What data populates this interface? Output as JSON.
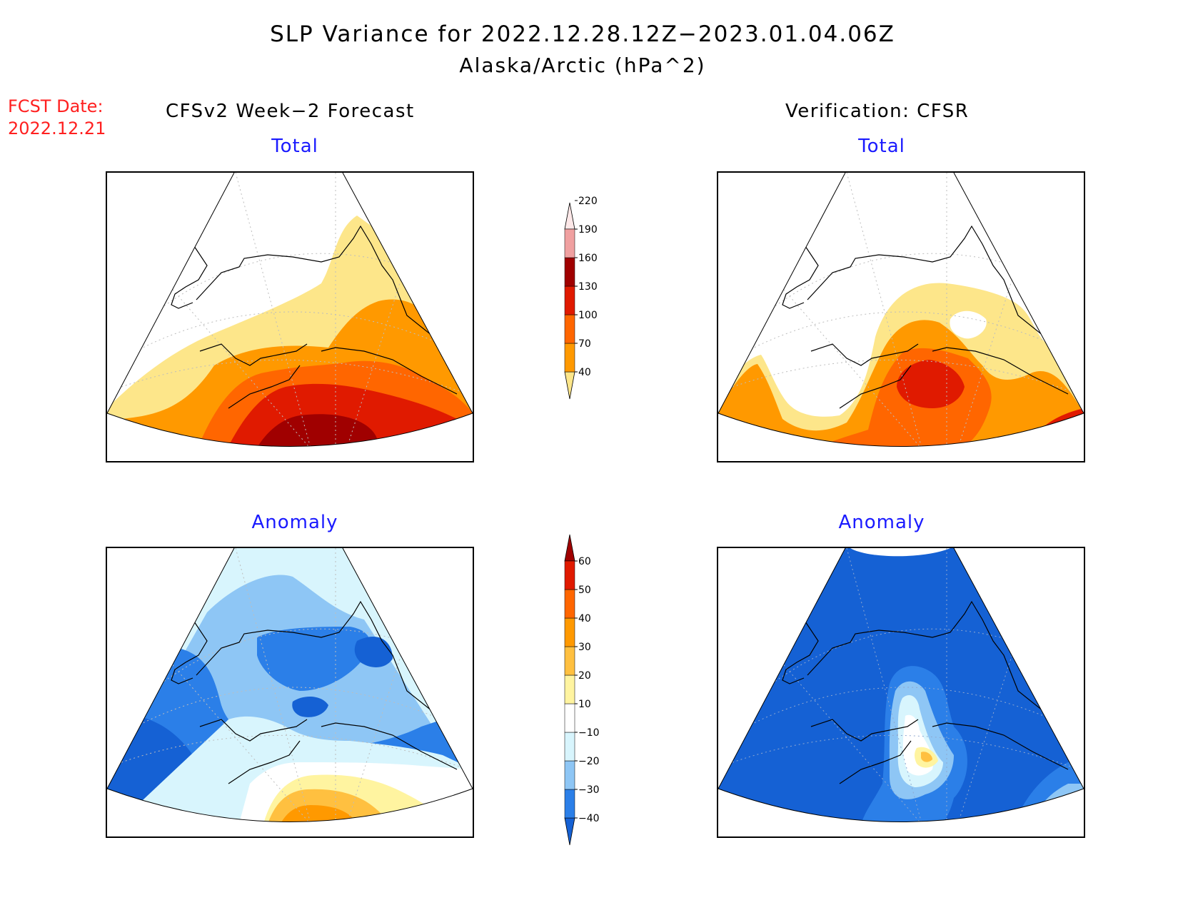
{
  "title": {
    "line1": "SLP Variance for 2022.12.28.12Z−2023.01.04.06Z",
    "line2": "Alaska/Arctic (hPa^2)"
  },
  "forecast_date": {
    "label": "FCST Date:",
    "value": "2022.12.21"
  },
  "columns": {
    "left": "CFSv2 Week−2 Forecast",
    "right": "Verification: CFSR"
  },
  "panels": [
    {
      "id": "forecast-total",
      "title": "Total"
    },
    {
      "id": "verification-total",
      "title": "Total"
    },
    {
      "id": "forecast-anomaly",
      "title": "Anomaly"
    },
    {
      "id": "verification-anomaly",
      "title": "Anomaly"
    }
  ],
  "colorbars": {
    "total": {
      "levels": [
        "40",
        "70",
        "100",
        "130",
        "160",
        "190",
        "220"
      ],
      "colors": [
        "#fde68a",
        "#ff9900",
        "#ff6600",
        "#e01a00",
        "#a00000",
        "#f0a0a0",
        "#fde8e8"
      ]
    },
    "anomaly": {
      "levels": [
        "−40",
        "−30",
        "−20",
        "−10",
        "10",
        "20",
        "30",
        "40",
        "50",
        "60"
      ],
      "colors": [
        "#1561d4",
        "#2b7fe8",
        "#8ec6f5",
        "#d8f5fd",
        "#ffffff",
        "#fff4a0",
        "#ffc040",
        "#ff9900",
        "#ff6600",
        "#e01a00",
        "#a00000"
      ]
    }
  }
}
